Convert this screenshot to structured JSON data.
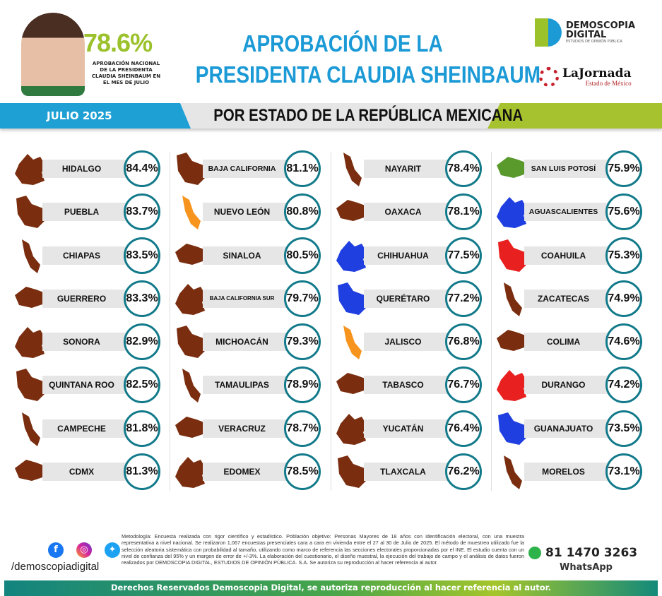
{
  "header": {
    "national_value": "78.6%",
    "national_label": "APROBACIÓN NACIONAL DE LA PRESIDENTA CLAUDIA SHEINBAUM EN EL MES DE JULIO",
    "title_line1": "APROBACIÓN DE LA",
    "title_line2": "PRESIDENTA CLAUDIA SHEINBAUM",
    "month": "JULIO 2025",
    "subtitle": "POR ESTADO DE LA REPÚBLICA MEXICANA",
    "logo_demoscopia": {
      "line1": "DEMOSCOPIA",
      "line2": "DIGITAL",
      "tagline": "ESTUDIOS DE OPINIÓN PÚBLICA"
    },
    "logo_jornada": {
      "name": "LaJornada",
      "region": "Estado de México"
    }
  },
  "colors": {
    "brown": "#7a2d0f",
    "orange": "#f7941d",
    "green": "#5a9a2c",
    "blue": "#1f3fe0",
    "red": "#e8201f",
    "ring": "#127a8a",
    "title": "#1b9ad6",
    "accent_green": "#9bc12b"
  },
  "columns": [
    [
      {
        "state": "HIDALGO",
        "value": "84.4%",
        "color": "brown"
      },
      {
        "state": "PUEBLA",
        "value": "83.7%",
        "color": "brown"
      },
      {
        "state": "CHIAPAS",
        "value": "83.5%",
        "color": "brown"
      },
      {
        "state": "GUERRERO",
        "value": "83.3%",
        "color": "brown"
      },
      {
        "state": "SONORA",
        "value": "82.9%",
        "color": "brown"
      },
      {
        "state": "QUINTANA ROO",
        "value": "82.5%",
        "color": "brown"
      },
      {
        "state": "CAMPECHE",
        "value": "81.8%",
        "color": "brown"
      },
      {
        "state": "CDMX",
        "value": "81.3%",
        "color": "brown"
      }
    ],
    [
      {
        "state": "BAJA CALIFORNIA",
        "value": "81.1%",
        "color": "brown"
      },
      {
        "state": "NUEVO LEÓN",
        "value": "80.8%",
        "color": "orange"
      },
      {
        "state": "SINALOA",
        "value": "80.5%",
        "color": "brown"
      },
      {
        "state": "BAJA CALIFORNIA SUR",
        "value": "79.7%",
        "color": "brown"
      },
      {
        "state": "MICHOACÁN",
        "value": "79.3%",
        "color": "brown"
      },
      {
        "state": "TAMAULIPAS",
        "value": "78.9%",
        "color": "brown"
      },
      {
        "state": "VERACRUZ",
        "value": "78.7%",
        "color": "brown"
      },
      {
        "state": "EDOMEX",
        "value": "78.5%",
        "color": "brown"
      }
    ],
    [
      {
        "state": "NAYARIT",
        "value": "78.4%",
        "color": "brown"
      },
      {
        "state": "OAXACA",
        "value": "78.1%",
        "color": "brown"
      },
      {
        "state": "CHIHUAHUA",
        "value": "77.5%",
        "color": "blue"
      },
      {
        "state": "QUERÉTARO",
        "value": "77.2%",
        "color": "blue"
      },
      {
        "state": "JALISCO",
        "value": "76.8%",
        "color": "orange"
      },
      {
        "state": "TABASCO",
        "value": "76.7%",
        "color": "brown"
      },
      {
        "state": "YUCATÁN",
        "value": "76.4%",
        "color": "brown"
      },
      {
        "state": "TLAXCALA",
        "value": "76.2%",
        "color": "brown"
      }
    ],
    [
      {
        "state": "SAN LUIS POTOSÍ",
        "value": "75.9%",
        "color": "green"
      },
      {
        "state": "AGUASCALIENTES",
        "value": "75.6%",
        "color": "blue"
      },
      {
        "state": "COAHUILA",
        "value": "75.3%",
        "color": "red"
      },
      {
        "state": "ZACATECAS",
        "value": "74.9%",
        "color": "brown"
      },
      {
        "state": "COLIMA",
        "value": "74.6%",
        "color": "brown"
      },
      {
        "state": "DURANGO",
        "value": "74.2%",
        "color": "red"
      },
      {
        "state": "GUANAJUATO",
        "value": "73.5%",
        "color": "blue"
      },
      {
        "state": "MORELOS",
        "value": "73.1%",
        "color": "brown"
      }
    ]
  ],
  "footer": {
    "social_icons": [
      "facebook-icon",
      "instagram-icon",
      "twitter-icon"
    ],
    "handle": "/demoscopiadigital",
    "methodology": "Metodología: Encuesta realizada con rigor científico y estadístico. Población objetivo: Personas Mayores de 18 años con identificación electoral, con una muestra representativa a nivel nacional. Se realizaron 1,067 encuestas presenciales cara a cara en vivienda entre el 27 al 30 de Julio de 2025. El método de muestreo utilizado fue la selección aleatoria sistemática con probabilidad al tamaño, utilizando como marco de referencia las secciones electorales proporcionadas por el INE. El estudio cuenta con un nivel de confianza del 95% y un margen de error de +/-3%. La elaboración del cuestionario, el diseño muestral, la ejecución del trabajo de campo y el análisis de datos fueron realizados por DEMOSCOPIA DIGITAL, ESTUDIOS DE OPINIÓN PÚBLICA. S.A. Se autoriza su reproducción al hacer referencia al autor.",
    "phone": "81 1470 3263",
    "whatsapp_label": "WhatsApp",
    "rights": "Derechos Reservados Demoscopia Digital, se autoriza reproducción al hacer referencia al autor."
  }
}
